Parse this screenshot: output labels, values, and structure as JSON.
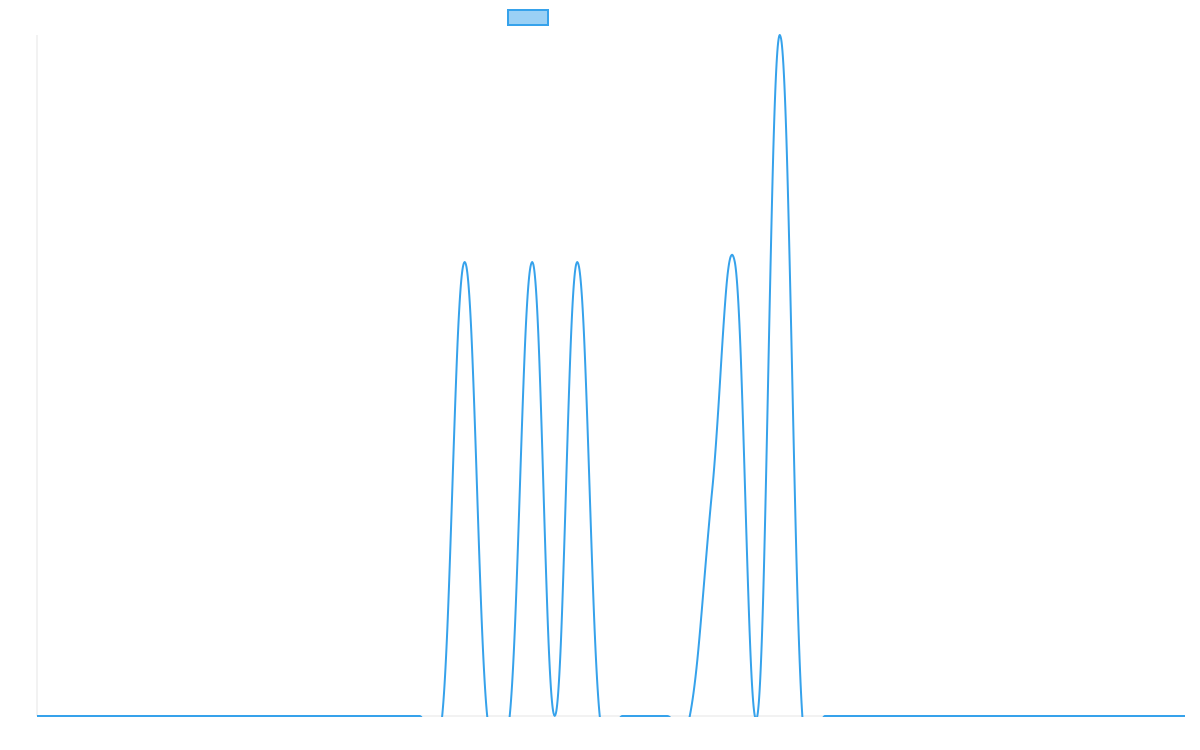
{
  "chart_data": {
    "type": "line",
    "categories": [
      null,
      null,
      null,
      null,
      null,
      null,
      null,
      null,
      null,
      null,
      null,
      null,
      null,
      null,
      null,
      null,
      null,
      null,
      null,
      null,
      null,
      null,
      null,
      null,
      null,
      null,
      null,
      null,
      null,
      null,
      null,
      null,
      null,
      null,
      null,
      null,
      null,
      null,
      null,
      null,
      null,
      null,
      null,
      null,
      null,
      null,
      null,
      null,
      null,
      null,
      null,
      null
    ],
    "series": [
      {
        "color": "#36a2eb",
        "values": [
          0,
          0,
          0,
          0,
          0,
          0,
          0,
          0,
          0,
          0,
          0,
          0,
          0,
          0,
          0,
          0,
          0,
          0,
          0,
          2,
          0,
          0,
          2,
          0,
          2,
          0,
          0,
          0,
          0,
          0,
          1,
          2,
          0,
          3,
          0,
          0,
          0,
          0,
          0,
          0,
          0,
          0,
          0,
          0,
          0,
          0,
          0,
          0,
          0,
          0,
          0,
          0
        ]
      }
    ],
    "ylim": [
      0,
      3
    ],
    "legend": "top"
  }
}
